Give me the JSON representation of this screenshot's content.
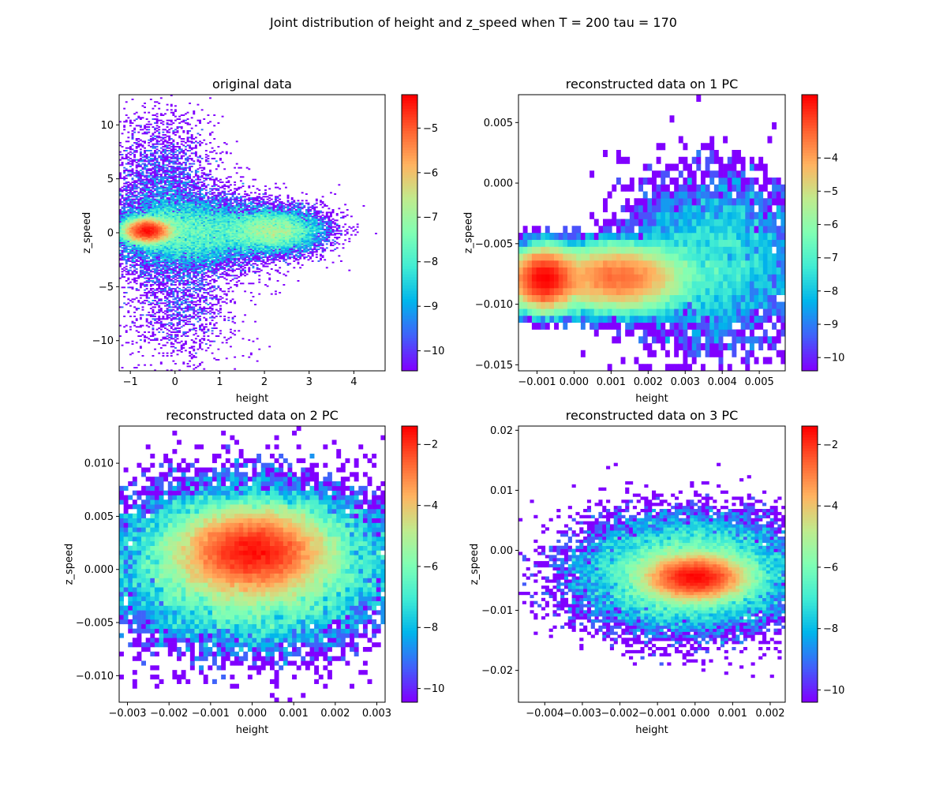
{
  "figure": {
    "title": "Joint distribution of height and z_speed when T = 200 tau = 170"
  },
  "colormap": {
    "name": "rainbow",
    "stops": [
      "#8000ff",
      "#4062fa",
      "#00b5eb",
      "#40ecd4",
      "#80ffb4",
      "#c0eb8d",
      "#ffb360",
      "#ff6130",
      "#ff0000"
    ]
  },
  "chart_data": [
    {
      "type": "heatmap",
      "title": "original data",
      "xlabel": "height",
      "ylabel": "z_speed",
      "xlim": [
        -1.25,
        4.7
      ],
      "ylim": [
        -12.8,
        12.8
      ],
      "xticks": [
        -1,
        0,
        1,
        2,
        3,
        4
      ],
      "yticks": [
        -10,
        -5,
        0,
        5,
        10
      ],
      "colorbar": {
        "range": [
          -10.45,
          -4.25
        ],
        "ticks": [
          -10,
          -9,
          -8,
          -7,
          -6,
          -5
        ]
      },
      "bins": [
        130,
        210
      ],
      "clusters": [
        {
          "center": [
            -0.62,
            0.2
          ],
          "spread": [
            0.25,
            0.55
          ],
          "weight": 0.42
        },
        {
          "center": [
            0.3,
            0.1
          ],
          "spread": [
            0.9,
            1.6
          ],
          "weight": 0.28
        },
        {
          "center": [
            2.2,
            0.2
          ],
          "spread": [
            0.55,
            1.0
          ],
          "weight": 0.2
        },
        {
          "center": [
            -0.3,
            4.0
          ],
          "spread": [
            0.6,
            3.5
          ],
          "weight": 0.06
        },
        {
          "center": [
            0.1,
            -5.0
          ],
          "spread": [
            0.6,
            3.5
          ],
          "weight": 0.04
        }
      ]
    },
    {
      "type": "heatmap",
      "title": "reconstructed data on 1 PC",
      "xlabel": "height",
      "ylabel": "z_speed",
      "xlim": [
        -0.0015,
        0.0057
      ],
      "ylim": [
        -0.0155,
        0.0073
      ],
      "xticks": [
        -0.001,
        0.0,
        0.001,
        0.002,
        0.003,
        0.004,
        0.005
      ],
      "yticks": [
        -0.015,
        -0.01,
        -0.005,
        0.0,
        0.005
      ],
      "colorbar": {
        "range": [
          -10.4,
          -2.1
        ],
        "ticks": [
          -10,
          -9,
          -8,
          -7,
          -6,
          -5,
          -4
        ]
      },
      "bins": [
        60,
        40
      ],
      "clusters": [
        {
          "center": [
            -0.0008,
            -0.0079
          ],
          "spread": [
            0.0004,
            0.0011
          ],
          "weight": 0.5
        },
        {
          "center": [
            0.0012,
            -0.0078
          ],
          "spread": [
            0.0008,
            0.0012
          ],
          "weight": 0.42
        },
        {
          "center": [
            0.0038,
            -0.0065
          ],
          "spread": [
            0.0012,
            0.0035
          ],
          "weight": 0.08
        }
      ]
    },
    {
      "type": "heatmap",
      "title": "reconstructed data on 2 PC",
      "xlabel": "height",
      "ylabel": "z_speed",
      "xlim": [
        -0.0032,
        0.0032
      ],
      "ylim": [
        -0.0125,
        0.0135
      ],
      "xticks": [
        -0.003,
        -0.002,
        -0.001,
        0.0,
        0.001,
        0.002,
        0.003
      ],
      "yticks": [
        -0.01,
        -0.005,
        0.0,
        0.005,
        0.01
      ],
      "colorbar": {
        "range": [
          -10.45,
          -1.4
        ],
        "ticks": [
          -10,
          -8,
          -6,
          -4,
          -2
        ]
      },
      "bins": [
        60,
        60
      ],
      "clusters": [
        {
          "center": [
            0.0,
            0.0017
          ],
          "spread": [
            0.0008,
            0.0018
          ],
          "weight": 0.6
        },
        {
          "center": [
            0.0,
            0.0005
          ],
          "spread": [
            0.0016,
            0.0035
          ],
          "weight": 0.4
        }
      ]
    },
    {
      "type": "heatmap",
      "title": "reconstructed data on 3 PC",
      "xlabel": "height",
      "ylabel": "z_speed",
      "xlim": [
        -0.0047,
        0.0024
      ],
      "ylim": [
        -0.0253,
        0.0207
      ],
      "xticks": [
        -0.004,
        -0.003,
        -0.002,
        -0.001,
        0.0,
        0.001,
        0.002
      ],
      "yticks": [
        -0.02,
        -0.01,
        0.0,
        0.01,
        0.02
      ],
      "colorbar": {
        "range": [
          -10.4,
          -1.4
        ],
        "ticks": [
          -10,
          -8,
          -6,
          -4,
          -2
        ]
      },
      "bins": [
        70,
        90
      ],
      "clusters": [
        {
          "center": [
            0.0,
            -0.0045
          ],
          "spread": [
            0.0006,
            0.0017
          ],
          "weight": 0.65
        },
        {
          "center": [
            -0.0002,
            -0.004
          ],
          "spread": [
            0.0014,
            0.0045
          ],
          "weight": 0.35
        }
      ]
    }
  ]
}
